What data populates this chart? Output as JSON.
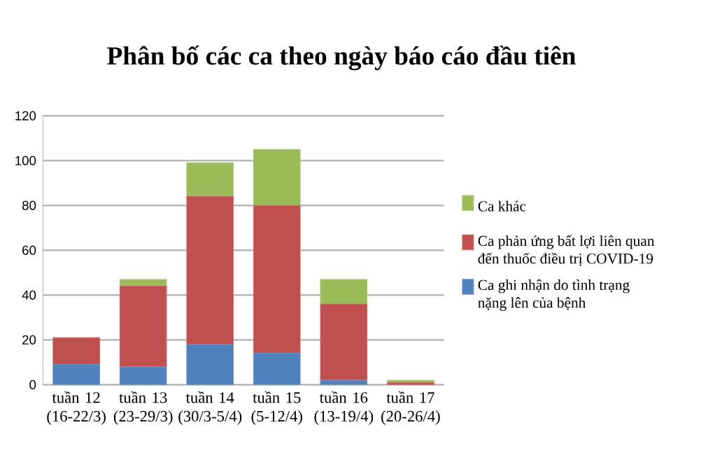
{
  "chart_data": {
    "type": "bar",
    "title": "Phân bố các ca theo ngày báo cáo đầu tiên",
    "categories": [
      "tuần 12 (16-22/3)",
      "tuần 13 (23-29/3)",
      "tuần 14 (30/3-5/4)",
      "tuần 15 (5-12/4)",
      "tuần 16 (13-19/4)",
      "tuần 17 (20-26/4)"
    ],
    "stacked": true,
    "series": [
      {
        "name": "Ca ghi nhận do tình trạng nặng lên của bệnh",
        "color": "#4f81bd",
        "values": [
          9,
          8,
          18,
          14,
          2,
          0
        ]
      },
      {
        "name": "Ca phản ứng bất lợi liên quan đến thuốc điều trị COVID-19",
        "color": "#c0504d",
        "values": [
          12,
          36,
          66,
          66,
          34,
          1
        ]
      },
      {
        "name": "Ca khác",
        "color": "#9bbb59",
        "values": [
          0,
          3,
          15,
          25,
          11,
          1
        ]
      }
    ],
    "ylim": [
      0,
      120
    ],
    "yticks": [
      0,
      20,
      40,
      60,
      80,
      100,
      120
    ],
    "grid": "y",
    "legend": "right"
  }
}
